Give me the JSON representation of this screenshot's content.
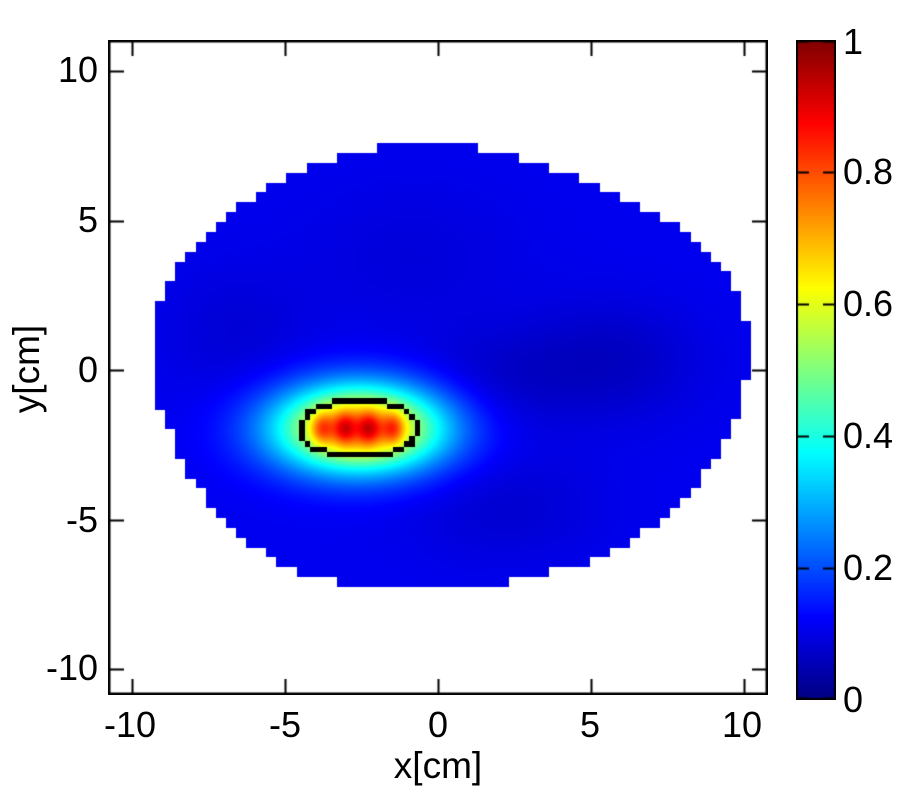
{
  "figure": {
    "background": "#ffffff",
    "frame_color": "#000000",
    "x_axis": {
      "label": "x[cm]",
      "tick_labels": [
        "-10",
        "-5",
        "0",
        "5",
        "10"
      ]
    },
    "y_axis": {
      "label": "y[cm]",
      "tick_labels": [
        "10",
        "5",
        "0",
        "-5",
        "-10"
      ]
    },
    "colorbar": {
      "tick_labels": [
        "1",
        "0.8",
        "0.6",
        "0.4",
        "0.2",
        "0"
      ]
    }
  },
  "chart_data": {
    "type": "heatmap",
    "title": "",
    "xlabel": "x[cm]",
    "ylabel": "y[cm]",
    "xlim": [
      -10.78,
      10.78
    ],
    "ylim": [
      -10.87,
      11.04
    ],
    "xticks": [
      -10,
      -5,
      0,
      5,
      10
    ],
    "yticks": [
      -10,
      -5,
      0,
      5,
      10
    ],
    "grid": false,
    "colormap": "jet",
    "value_range": [
      0,
      1
    ],
    "colorbar_ticks": [
      0,
      0.2,
      0.4,
      0.6,
      0.8,
      1
    ],
    "outside_color": "#ffffff",
    "phantom": {
      "center_x": 0.25,
      "center_y": 0.05,
      "rx": 9.75,
      "ry": 7.45,
      "edge_cell_cm": 0.33,
      "base_value": 0.11
    },
    "background_blobs": [
      {
        "x": 5.6,
        "y": 0.3,
        "sx": 2.0,
        "sy": 1.4,
        "amp": -0.045
      },
      {
        "x": 1.8,
        "y": -0.4,
        "sx": 1.9,
        "sy": 1.2,
        "amp": -0.035
      },
      {
        "x": -0.8,
        "y": 3.8,
        "sx": 2.6,
        "sy": 1.8,
        "amp": -0.02
      },
      {
        "x": -6.6,
        "y": 1.2,
        "sx": 1.7,
        "sy": 1.6,
        "amp": -0.025
      },
      {
        "x": 2.2,
        "y": -4.6,
        "sx": 2.2,
        "sy": 1.3,
        "amp": -0.03
      }
    ],
    "hotspot": {
      "center_x": -2.55,
      "center_y": -1.95,
      "rx": 2.0,
      "ry": 1.05,
      "amp": 0.66,
      "decay": 0.53,
      "cores": [
        -3.8,
        -3.05,
        -2.25,
        -1.45
      ],
      "core_y": -1.95,
      "core_amp": 0.175,
      "core_sx": 0.26,
      "core_sy": 0.38,
      "peak_value": 1.0
    },
    "contour": {
      "level": 0.5,
      "cell_cm": 0.18,
      "color": "#000000",
      "center_x": -2.55,
      "center_y": -1.95,
      "semi_x_cm": 2.1,
      "semi_y_cm": 1.15
    }
  }
}
